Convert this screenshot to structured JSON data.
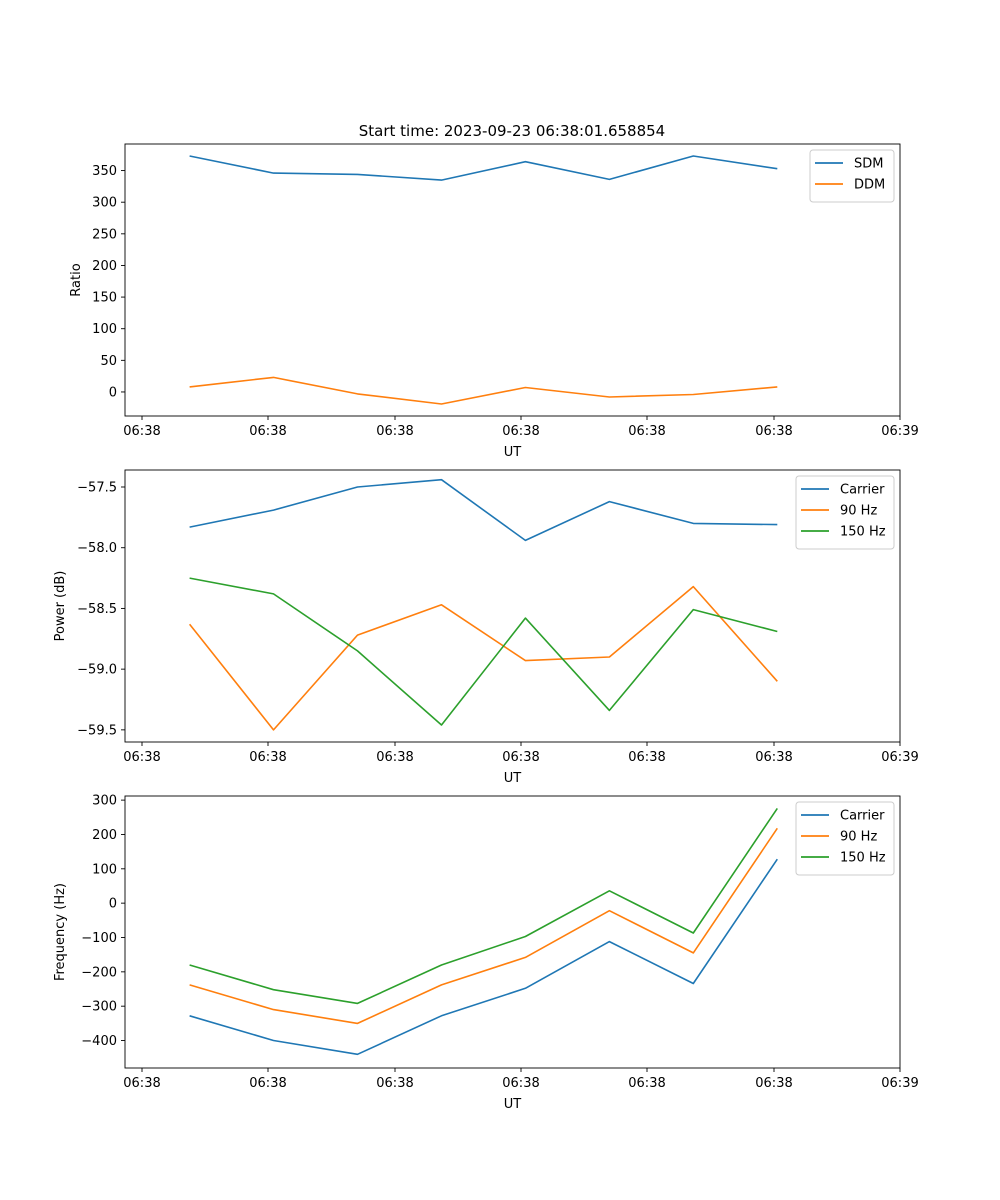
{
  "figure_title": "Start time: 2023-09-23 06:38:01.658854",
  "chart_data": [
    {
      "type": "line",
      "title": "Start time: 2023-09-23 06:38:01.658854",
      "xlabel": "UT",
      "ylabel": "Ratio",
      "x_tick_labels": [
        "06:38",
        "06:38",
        "06:38",
        "06:38",
        "06:38",
        "06:38",
        "06:39"
      ],
      "x": [
        0.5,
        1.15,
        1.8,
        2.45,
        3.1,
        3.75,
        4.4,
        5.05
      ],
      "xlim": [
        0,
        6
      ],
      "ylim": [
        -38,
        392
      ],
      "y_ticks": [
        0,
        50,
        100,
        150,
        200,
        250,
        300,
        350
      ],
      "y_tick_labels": [
        "0",
        "50",
        "100",
        "150",
        "200",
        "250",
        "300",
        "350"
      ],
      "legend_position": "upper right",
      "grid": false,
      "series": [
        {
          "name": "SDM",
          "color": "#1f77b4",
          "values": [
            373,
            346,
            344,
            335,
            364,
            336,
            373,
            353
          ]
        },
        {
          "name": "DDM",
          "color": "#ff7f0e",
          "values": [
            8,
            23,
            -3,
            -19,
            7,
            -8,
            -4,
            8
          ]
        }
      ]
    },
    {
      "type": "line",
      "title": "",
      "xlabel": "UT",
      "ylabel": "Power (dB)",
      "x_tick_labels": [
        "06:38",
        "06:38",
        "06:38",
        "06:38",
        "06:38",
        "06:38",
        "06:39"
      ],
      "x": [
        0.5,
        1.15,
        1.8,
        2.45,
        3.1,
        3.75,
        4.4,
        5.05
      ],
      "xlim": [
        0,
        6
      ],
      "ylim": [
        -59.6,
        -57.36
      ],
      "y_ticks": [
        -59.5,
        -59.0,
        -58.5,
        -58.0,
        -57.5
      ],
      "y_tick_labels": [
        "−59.5",
        "−59.0",
        "−58.5",
        "−58.0",
        "−57.5"
      ],
      "legend_position": "upper right",
      "grid": false,
      "series": [
        {
          "name": "Carrier",
          "color": "#1f77b4",
          "values": [
            -57.83,
            -57.69,
            -57.5,
            -57.44,
            -57.94,
            -57.62,
            -57.8,
            -57.81
          ]
        },
        {
          "name": "90 Hz",
          "color": "#ff7f0e",
          "values": [
            -58.63,
            -59.5,
            -58.72,
            -58.47,
            -58.93,
            -58.9,
            -58.32,
            -59.1
          ]
        },
        {
          "name": "150 Hz",
          "color": "#2ca02c",
          "values": [
            -58.25,
            -58.38,
            -58.85,
            -59.46,
            -58.58,
            -59.34,
            -58.51,
            -58.69
          ]
        }
      ]
    },
    {
      "type": "line",
      "title": "",
      "xlabel": "UT",
      "ylabel": "Frequency (Hz)",
      "x_tick_labels": [
        "06:38",
        "06:38",
        "06:38",
        "06:38",
        "06:38",
        "06:38",
        "06:39"
      ],
      "x": [
        0.5,
        1.15,
        1.8,
        2.45,
        3.1,
        3.75,
        4.4,
        5.05
      ],
      "xlim": [
        0,
        6
      ],
      "ylim": [
        -480,
        312
      ],
      "y_ticks": [
        -400,
        -300,
        -200,
        -100,
        0,
        100,
        200,
        300
      ],
      "y_tick_labels": [
        "−400",
        "−300",
        "−200",
        "−100",
        "0",
        "100",
        "200",
        "300"
      ],
      "legend_position": "upper right",
      "grid": false,
      "series": [
        {
          "name": "Carrier",
          "color": "#1f77b4",
          "values": [
            -328,
            -400,
            -440,
            -328,
            -248,
            -112,
            -234,
            128
          ]
        },
        {
          "name": "90 Hz",
          "color": "#ff7f0e",
          "values": [
            -238,
            -310,
            -350,
            -238,
            -158,
            -22,
            -145,
            218
          ]
        },
        {
          "name": "150 Hz",
          "color": "#2ca02c",
          "values": [
            -180,
            -252,
            -292,
            -180,
            -97,
            36,
            -87,
            276
          ]
        }
      ]
    }
  ]
}
